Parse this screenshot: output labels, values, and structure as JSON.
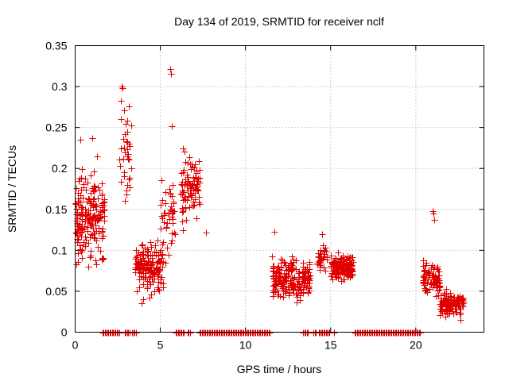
{
  "chart_data": {
    "type": "scatter",
    "title": "Day 134 of 2019, SRMTID for receiver nclf",
    "xlabel": "GPS time / hours",
    "ylabel": "SRMTID / TECUs",
    "xlim": [
      0,
      24
    ],
    "ylim": [
      0,
      0.35
    ],
    "x_ticks": [
      0,
      5,
      10,
      15,
      20
    ],
    "x_tick_labels": [
      "0",
      "5",
      "10",
      "15",
      "20"
    ],
    "y_ticks": [
      0,
      0.05,
      0.1,
      0.15,
      0.2,
      0.25,
      0.3,
      0.35
    ],
    "y_tick_labels": [
      "0",
      "0.05",
      "0.1",
      "0.15",
      "0.2",
      "0.25",
      "0.3",
      "0.35"
    ],
    "grid": true,
    "marker": "+",
    "color": "#e00000",
    "clusters": [
      {
        "x": [
          0.0,
          1.7
        ],
        "y_center": 0.14,
        "y_spread": 0.05,
        "n": 190
      },
      {
        "x": [
          2.6,
          3.3
        ],
        "y_center": 0.22,
        "y_spread": 0.05,
        "n": 35
      },
      {
        "x": [
          3.5,
          5.2
        ],
        "y_center": 0.08,
        "y_spread": 0.03,
        "n": 150
      },
      {
        "x": [
          5.0,
          5.9
        ],
        "y_center": 0.13,
        "y_spread": 0.06,
        "n": 45
      },
      {
        "x": [
          6.2,
          7.3
        ],
        "y_center": 0.18,
        "y_spread": 0.04,
        "n": 95
      },
      {
        "x": [
          11.5,
          13.8
        ],
        "y_center": 0.065,
        "y_spread": 0.022,
        "n": 200
      },
      {
        "x": [
          14.2,
          14.8
        ],
        "y_center": 0.09,
        "y_spread": 0.015,
        "n": 30
      },
      {
        "x": [
          15.0,
          16.3
        ],
        "y_center": 0.08,
        "y_spread": 0.015,
        "n": 150
      },
      {
        "x": [
          20.4,
          21.4
        ],
        "y_center": 0.065,
        "y_spread": 0.02,
        "n": 90
      },
      {
        "x": [
          21.4,
          22.8
        ],
        "y_center": 0.035,
        "y_spread": 0.012,
        "n": 140
      }
    ],
    "isolated_points": [
      {
        "x": 2.75,
        "y": 0.3
      },
      {
        "x": 2.8,
        "y": 0.298
      },
      {
        "x": 2.7,
        "y": 0.283
      },
      {
        "x": 5.6,
        "y": 0.321
      },
      {
        "x": 5.62,
        "y": 0.316
      },
      {
        "x": 5.65,
        "y": 0.252
      },
      {
        "x": 21.0,
        "y": 0.148
      },
      {
        "x": 21.05,
        "y": 0.145
      },
      {
        "x": 21.1,
        "y": 0.137
      },
      {
        "x": 7.7,
        "y": 0.122
      },
      {
        "x": 11.7,
        "y": 0.123
      },
      {
        "x": 14.5,
        "y": 0.12
      },
      {
        "x": 0.3,
        "y": 0.235
      },
      {
        "x": 1.0,
        "y": 0.237
      },
      {
        "x": 1.3,
        "y": 0.215
      },
      {
        "x": 4.0,
        "y": 0.04
      },
      {
        "x": 3.9,
        "y": 0.035
      },
      {
        "x": 22.6,
        "y": 0.015
      }
    ],
    "zero_segments": [
      [
        1.6,
        2.6
      ],
      [
        2.9,
        3.2
      ],
      [
        3.35,
        3.6
      ],
      [
        5.9,
        6.4
      ],
      [
        6.6,
        6.75
      ],
      [
        7.3,
        11.5
      ],
      [
        13.4,
        13.7
      ],
      [
        14.0,
        14.2
      ],
      [
        14.3,
        15.0
      ],
      [
        15.2,
        15.25
      ],
      [
        16.4,
        20.3
      ]
    ]
  }
}
